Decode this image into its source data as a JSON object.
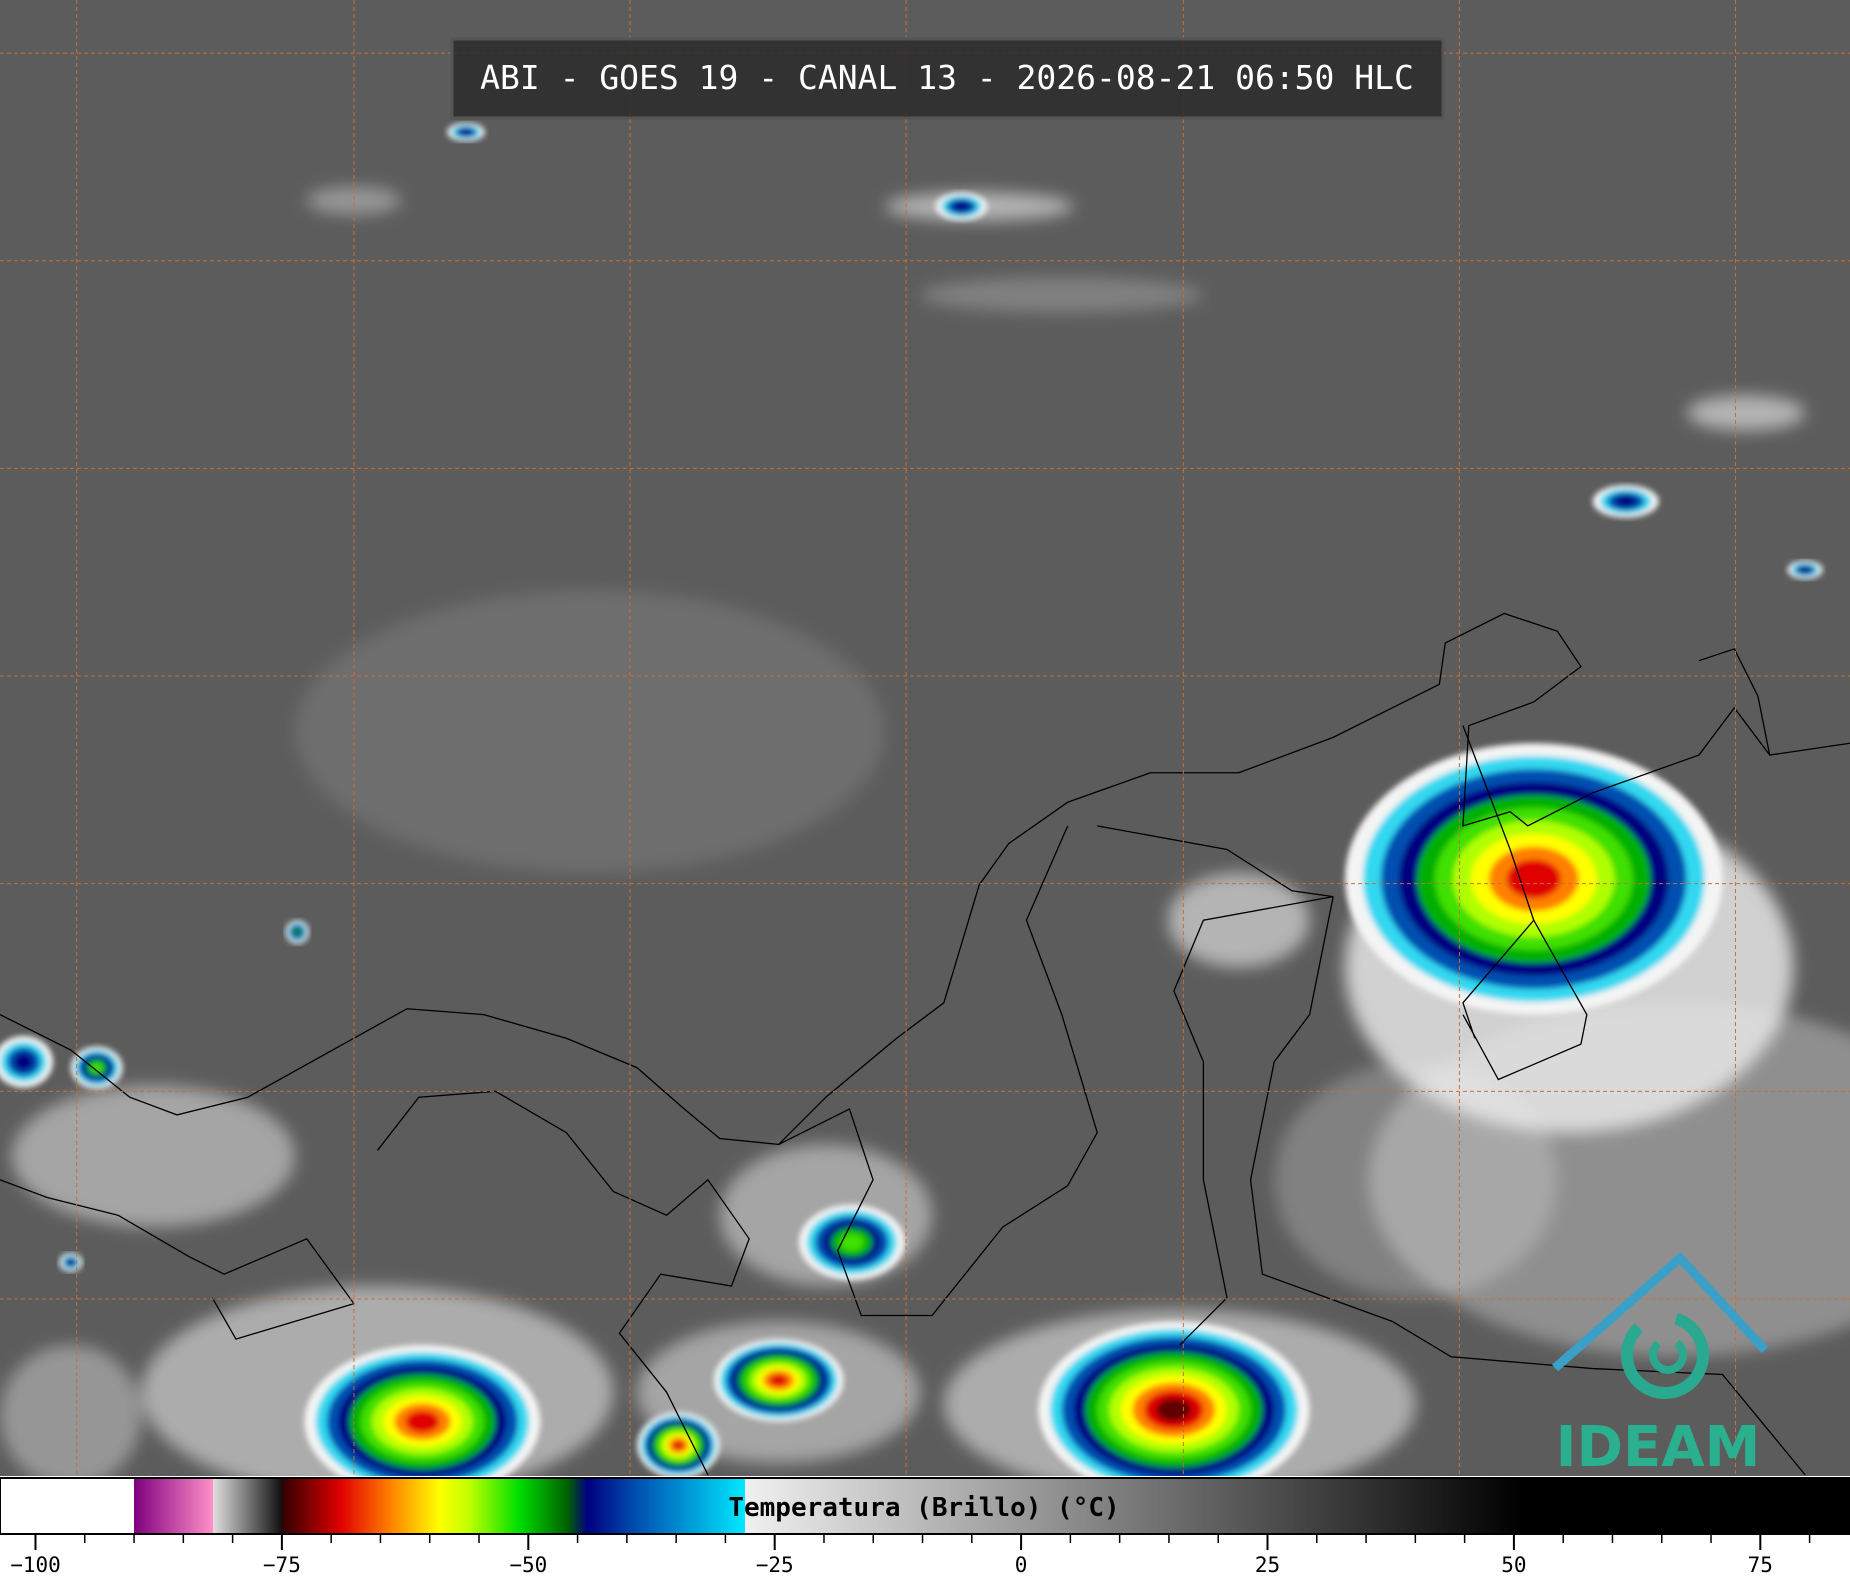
{
  "header": {
    "title": "ABI - GOES 19 - CANAL 13 - 2026-08-21 06:50 HLC"
  },
  "logo": {
    "text": "IDEAM"
  },
  "chart_data": {
    "type": "colorbar",
    "title": "Temperatura (Brillo) (°C)",
    "xlim": [
      -103.6,
      84.1
    ],
    "xticks": [
      {
        "value": -100,
        "label": "−100"
      },
      {
        "value": -75,
        "label": "−75"
      },
      {
        "value": -50,
        "label": "−50"
      },
      {
        "value": -25,
        "label": "−25"
      },
      0,
      25,
      50,
      75
    ],
    "minor_ticks": [
      -95,
      -90,
      -85,
      -80,
      -70,
      -65,
      -60,
      -55,
      -45,
      -40,
      -35,
      -30,
      -20,
      -15,
      -10,
      -5,
      5,
      10,
      15,
      20,
      30,
      35,
      40,
      45,
      55,
      60,
      65,
      70,
      80
    ],
    "colormap": [
      {
        "value": -103.6,
        "color": "#ffffff"
      },
      {
        "value": -90,
        "color": "#ffffff"
      },
      {
        "value": -90,
        "color": "#800080"
      },
      {
        "value": -82,
        "color": "#ff90c8"
      },
      {
        "value": -82,
        "color": "#e0e0e0"
      },
      {
        "value": -75,
        "color": "#101010"
      },
      {
        "value": -75,
        "color": "#300000"
      },
      {
        "value": -69,
        "color": "#e00000"
      },
      {
        "value": -64,
        "color": "#ff8000"
      },
      {
        "value": -59,
        "color": "#ffff00"
      },
      {
        "value": -56,
        "color": "#c0ff00"
      },
      {
        "value": -51,
        "color": "#00e000"
      },
      {
        "value": -46,
        "color": "#006000"
      },
      {
        "value": -44,
        "color": "#000080"
      },
      {
        "value": -39,
        "color": "#0050b0"
      },
      {
        "value": -28,
        "color": "#00e8ff"
      },
      {
        "value": -28,
        "color": "#f0f0f0"
      },
      {
        "value": 51,
        "color": "#000000"
      },
      {
        "value": 84.1,
        "color": "#000000"
      }
    ]
  }
}
